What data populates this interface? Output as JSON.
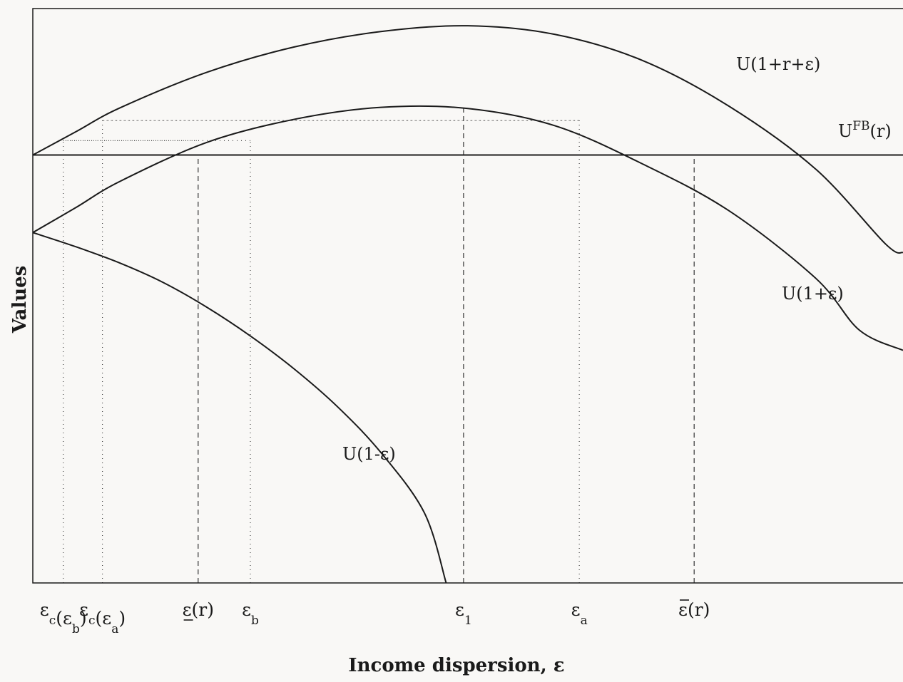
{
  "chart_data": {
    "type": "line",
    "xlabel": "Income dispersion, ε",
    "ylabel": "Values",
    "xlim": [
      0,
      1
    ],
    "ylim": [
      0,
      1
    ],
    "grid": false,
    "legend": "none",
    "series": [
      {
        "name": "U(1+r+ε)",
        "label": "U(1+r+ε)",
        "x": [
          0,
          0.05,
          0.1,
          0.2,
          0.3,
          0.4,
          0.5,
          0.6,
          0.7,
          0.8,
          0.9,
          0.98,
          1.0
        ],
        "y": [
          0.745,
          0.786,
          0.827,
          0.889,
          0.933,
          0.96,
          0.97,
          0.955,
          0.91,
          0.83,
          0.72,
          0.59,
          0.575
        ]
      },
      {
        "name": "U(1+ε)",
        "label": "U(1+ε)",
        "x": [
          0,
          0.05,
          0.1,
          0.2,
          0.3,
          0.4,
          0.5,
          0.6,
          0.7,
          0.8,
          0.9,
          0.95,
          1.0
        ],
        "y": [
          0.61,
          0.654,
          0.699,
          0.767,
          0.807,
          0.828,
          0.826,
          0.796,
          0.73,
          0.648,
          0.53,
          0.44,
          0.405
        ]
      },
      {
        "name": "U(1-ε)",
        "label": "U(1-ε)",
        "x": [
          0,
          0.05,
          0.1,
          0.15,
          0.2,
          0.25,
          0.3,
          0.35,
          0.4,
          0.45,
          0.475
        ],
        "y": [
          0.61,
          0.585,
          0.557,
          0.523,
          0.48,
          0.43,
          0.373,
          0.307,
          0.227,
          0.122,
          0.0
        ]
      },
      {
        "name": "UFB(r)",
        "label": "U",
        "label_sup": "FB",
        "label_tail": "(r)",
        "x": [
          0,
          1
        ],
        "y": [
          0.745,
          0.745
        ]
      }
    ],
    "dashed_lines": [
      {
        "x": 0.19,
        "y": 0.745
      },
      {
        "x": 0.495,
        "y": 0.828
      },
      {
        "x": 0.76,
        "y": 0.745
      }
    ],
    "dotted_lines": [
      {
        "x": 0.035,
        "y": 0.77,
        "to_x": 0.19
      },
      {
        "x": 0.08,
        "y": 0.805,
        "to_x": 0.628
      },
      {
        "x": 0.25,
        "y": 0.77,
        "to_x": 0.035
      },
      {
        "x": 0.628,
        "y": 0.805,
        "to_x": 0.08
      }
    ],
    "x_tick_labels": [
      {
        "x": 0.035,
        "base": "ε",
        "sub": "c",
        "tail": "(ε",
        "tail_sub": "b",
        "end": ")"
      },
      {
        "x": 0.08,
        "base": "ε",
        "sub": "c",
        "tail": "(ε",
        "tail_sub": "a",
        "end": ")"
      },
      {
        "x": 0.19,
        "base": "ε",
        "under": true,
        "tail": "(r)"
      },
      {
        "x": 0.25,
        "base": "ε",
        "sub": "b"
      },
      {
        "x": 0.495,
        "base": "ε",
        "sub": "1"
      },
      {
        "x": 0.628,
        "base": "ε",
        "sub": "a"
      },
      {
        "x": 0.76,
        "base": "ε",
        "over": true,
        "tail": "(r)"
      }
    ]
  }
}
